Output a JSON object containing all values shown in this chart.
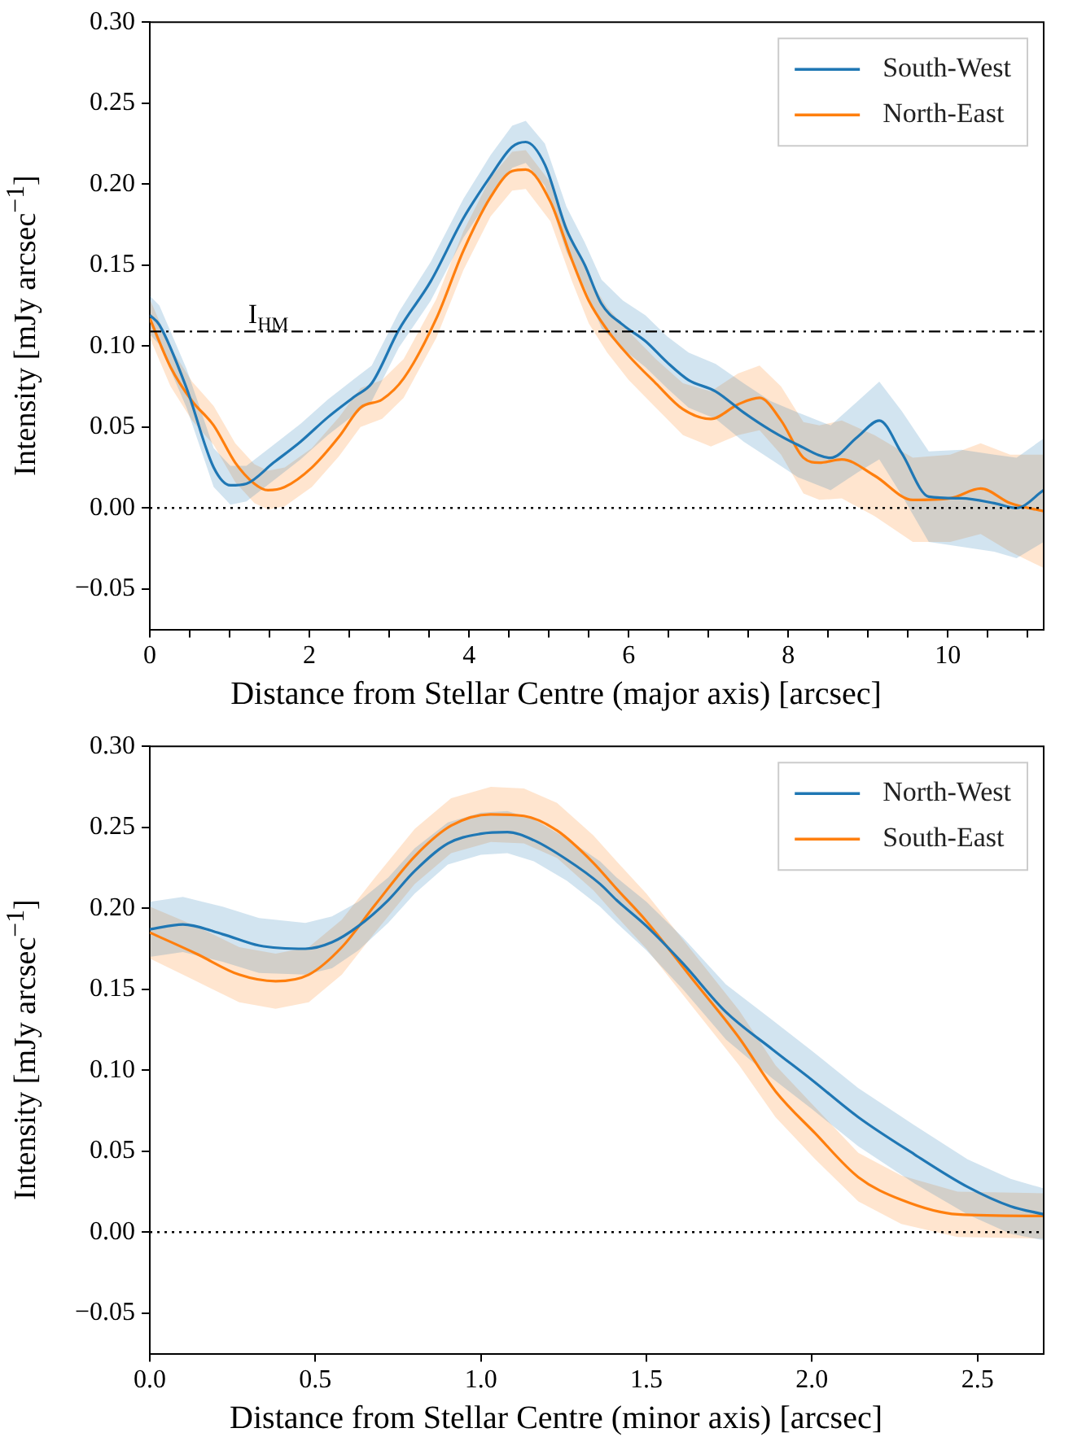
{
  "chart_data": [
    {
      "type": "line",
      "xlabel": "Distance from Stellar Centre (major axis) [arcsec]",
      "ylabel": "Intensity [mJy arcsec$^{−1}$]",
      "xlim": [
        0,
        11.2
      ],
      "ylim": [
        -0.075,
        0.3
      ],
      "xticks": [
        0,
        {
          "value": 0.5,
          "label": null
        },
        {
          "value": 1,
          "label": null
        },
        {
          "value": 1.5,
          "label": null
        },
        2,
        {
          "value": 2.5,
          "label": null
        },
        {
          "value": 3,
          "label": null
        },
        {
          "value": 3.5,
          "label": null
        },
        4,
        {
          "value": 4.5,
          "label": null
        },
        {
          "value": 5,
          "label": null
        },
        {
          "value": 5.5,
          "label": null
        },
        6,
        {
          "value": 6.5,
          "label": null
        },
        {
          "value": 7,
          "label": null
        },
        {
          "value": 7.5,
          "label": null
        },
        8,
        {
          "value": 8.5,
          "label": null
        },
        {
          "value": 9,
          "label": null
        },
        {
          "value": 9.5,
          "label": null
        },
        10,
        {
          "value": 10.5,
          "label": null
        },
        {
          "value": 11,
          "label": null
        }
      ],
      "yticks": [
        {
          "value": -0.05,
          "label": "−0.05"
        },
        {
          "value": 0,
          "label": "0.00"
        },
        {
          "value": 0.05,
          "label": "0.05"
        },
        {
          "value": 0.1,
          "label": "0.10"
        },
        {
          "value": 0.15,
          "label": "0.15"
        },
        {
          "value": 0.2,
          "label": "0.20"
        },
        {
          "value": 0.25,
          "label": "0.25"
        },
        {
          "value": 0.3,
          "label": "0.30"
        }
      ],
      "grid": false,
      "legend": "top right",
      "ref_lines": [
        {
          "axis": "y",
          "value": 0.109,
          "label": "I$_{HM}$",
          "line_style": "dashdot",
          "color": "#000000"
        },
        {
          "axis": "y",
          "value": 0,
          "line_style": "dotted",
          "color": "#000000"
        }
      ],
      "series": [
        {
          "name": "South-West",
          "color": "#1f77b4",
          "x": [
            0,
            0.12,
            0.46,
            0.8,
            1.01,
            1.21,
            1.55,
            1.89,
            2.23,
            2.57,
            2.78,
            3.12,
            3.52,
            3.93,
            4.27,
            4.54,
            4.71,
            4.95,
            5.22,
            5.45,
            5.66,
            5.93,
            6.21,
            6.48,
            6.75,
            7.09,
            7.44,
            7.78,
            8.12,
            8.53,
            8.87,
            9.14,
            9.42,
            9.76,
            10.17,
            10.58,
            10.86,
            11.2
          ],
          "values": [
            0.119,
            0.113,
            0.074,
            0.025,
            0.014,
            0.015,
            0.028,
            0.041,
            0.056,
            0.069,
            0.077,
            0.11,
            0.14,
            0.179,
            0.205,
            0.223,
            0.226,
            0.212,
            0.172,
            0.15,
            0.126,
            0.113,
            0.103,
            0.09,
            0.079,
            0.072,
            0.059,
            0.048,
            0.039,
            0.031,
            0.044,
            0.054,
            0.034,
            0.007,
            0.006,
            0.003,
            0,
            0.011
          ],
          "lower": [
            0.107,
            0.101,
            0.062,
            0.013,
            0.002,
            0.004,
            0.017,
            0.03,
            0.045,
            0.058,
            0.066,
            0.099,
            0.128,
            0.167,
            0.192,
            0.21,
            0.213,
            0.199,
            0.158,
            0.136,
            0.111,
            0.098,
            0.087,
            0.074,
            0.062,
            0.055,
            0.041,
            0.03,
            0.019,
            0.011,
            0.022,
            0.03,
            0.008,
            -0.021,
            -0.024,
            -0.027,
            -0.031,
            -0.021
          ],
          "upper": [
            0.131,
            0.125,
            0.086,
            0.037,
            0.026,
            0.026,
            0.039,
            0.052,
            0.067,
            0.08,
            0.088,
            0.121,
            0.152,
            0.191,
            0.218,
            0.236,
            0.239,
            0.225,
            0.186,
            0.164,
            0.141,
            0.128,
            0.119,
            0.106,
            0.096,
            0.089,
            0.077,
            0.066,
            0.059,
            0.051,
            0.066,
            0.078,
            0.06,
            0.035,
            0.036,
            0.033,
            0.031,
            0.043
          ]
        },
        {
          "name": "North-East",
          "color": "#ff7f0e",
          "x": [
            0,
            0.26,
            0.53,
            0.8,
            1.07,
            1.31,
            1.48,
            1.69,
            2.03,
            2.37,
            2.64,
            2.91,
            3.18,
            3.59,
            3.93,
            4.27,
            4.54,
            4.71,
            5.02,
            5.29,
            5.5,
            5.73,
            6,
            6.34,
            6.68,
            7.03,
            7.37,
            7.64,
            7.91,
            8.19,
            8.39,
            8.67,
            9.08,
            9.56,
            10.03,
            10.41,
            10.78,
            11.2
          ],
          "values": [
            0.117,
            0.087,
            0.066,
            0.051,
            0.028,
            0.015,
            0.011,
            0.013,
            0.025,
            0.044,
            0.062,
            0.067,
            0.08,
            0.117,
            0.159,
            0.192,
            0.208,
            0.209,
            0.189,
            0.153,
            0.128,
            0.11,
            0.094,
            0.077,
            0.061,
            0.055,
            0.064,
            0.068,
            0.054,
            0.031,
            0.028,
            0.03,
            0.02,
            0.005,
            0.006,
            0.012,
            0.003,
            -0.002
          ],
          "lower": [
            0.105,
            0.075,
            0.054,
            0.039,
            0.016,
            0.003,
            -0.001,
            0.001,
            0.013,
            0.032,
            0.05,
            0.055,
            0.068,
            0.105,
            0.147,
            0.18,
            0.196,
            0.197,
            0.177,
            0.14,
            0.114,
            0.096,
            0.079,
            0.062,
            0.045,
            0.038,
            0.045,
            0.048,
            0.033,
            0.009,
            0.005,
            0.006,
            -0.005,
            -0.021,
            -0.021,
            -0.016,
            -0.027,
            -0.037
          ],
          "upper": [
            0.129,
            0.099,
            0.078,
            0.063,
            0.04,
            0.027,
            0.023,
            0.025,
            0.037,
            0.056,
            0.074,
            0.079,
            0.092,
            0.129,
            0.171,
            0.204,
            0.22,
            0.221,
            0.201,
            0.166,
            0.142,
            0.124,
            0.109,
            0.092,
            0.077,
            0.072,
            0.083,
            0.088,
            0.075,
            0.053,
            0.051,
            0.054,
            0.045,
            0.031,
            0.033,
            0.04,
            0.033,
            0.033
          ]
        }
      ]
    },
    {
      "type": "line",
      "xlabel": "Distance from Stellar Centre (minor axis) [arcsec]",
      "ylabel": "Intensity [mJy arcsec$^{−1}$]",
      "xlim": [
        0,
        2.7
      ],
      "ylim": [
        -0.075,
        0.3
      ],
      "xticks": [
        {
          "value": 0,
          "label": "0.0"
        },
        0.5,
        {
          "value": 1,
          "label": "1.0"
        },
        1.5,
        {
          "value": 2,
          "label": "2.0"
        },
        2.5
      ],
      "yticks": [
        {
          "value": -0.05,
          "label": "−0.05"
        },
        {
          "value": 0,
          "label": "0.00"
        },
        {
          "value": 0.05,
          "label": "0.05"
        },
        {
          "value": 0.1,
          "label": "0.10"
        },
        {
          "value": 0.15,
          "label": "0.15"
        },
        {
          "value": 0.2,
          "label": "0.20"
        },
        {
          "value": 0.25,
          "label": "0.25"
        },
        {
          "value": 0.3,
          "label": "0.30"
        }
      ],
      "grid": false,
      "legend": "top right",
      "ref_lines": [
        {
          "axis": "y",
          "value": 0,
          "line_style": "dotted",
          "color": "#000000"
        }
      ],
      "series": [
        {
          "name": "North-West",
          "color": "#1f77b4",
          "x": [
            0,
            0.1,
            0.22,
            0.33,
            0.47,
            0.55,
            0.63,
            0.72,
            0.8,
            0.9,
            1,
            1.08,
            1.16,
            1.26,
            1.36,
            1.41,
            1.5,
            1.61,
            1.74,
            1.88,
            2,
            2.14,
            2.31,
            2.47,
            2.6,
            2.7
          ],
          "values": [
            0.187,
            0.19,
            0.184,
            0.177,
            0.175,
            0.179,
            0.189,
            0.205,
            0.223,
            0.24,
            0.246,
            0.247,
            0.242,
            0.23,
            0.215,
            0.205,
            0.189,
            0.166,
            0.136,
            0.113,
            0.094,
            0.071,
            0.048,
            0.028,
            0.016,
            0.011
          ],
          "lower": [
            0.17,
            0.173,
            0.167,
            0.16,
            0.159,
            0.163,
            0.174,
            0.191,
            0.209,
            0.227,
            0.233,
            0.234,
            0.229,
            0.217,
            0.201,
            0.191,
            0.174,
            0.15,
            0.119,
            0.095,
            0.076,
            0.053,
            0.03,
            0.011,
            -0.001,
            -0.005
          ],
          "upper": [
            0.204,
            0.207,
            0.201,
            0.194,
            0.191,
            0.195,
            0.204,
            0.219,
            0.237,
            0.253,
            0.259,
            0.26,
            0.255,
            0.243,
            0.229,
            0.219,
            0.204,
            0.182,
            0.153,
            0.131,
            0.112,
            0.089,
            0.066,
            0.045,
            0.033,
            0.027
          ]
        },
        {
          "name": "South-East",
          "color": "#ff7f0e",
          "x": [
            0,
            0.14,
            0.27,
            0.38,
            0.48,
            0.58,
            0.68,
            0.8,
            0.91,
            1.03,
            1.13,
            1.23,
            1.34,
            1.41,
            1.5,
            1.64,
            1.78,
            1.89,
            2.01,
            2.14,
            2.27,
            2.44,
            2.7
          ],
          "values": [
            0.185,
            0.172,
            0.159,
            0.155,
            0.159,
            0.176,
            0.202,
            0.232,
            0.251,
            0.258,
            0.257,
            0.248,
            0.228,
            0.212,
            0.192,
            0.156,
            0.12,
            0.087,
            0.061,
            0.034,
            0.02,
            0.011,
            0.01
          ],
          "lower": [
            0.169,
            0.155,
            0.142,
            0.138,
            0.142,
            0.159,
            0.185,
            0.215,
            0.234,
            0.241,
            0.24,
            0.231,
            0.211,
            0.195,
            0.175,
            0.139,
            0.103,
            0.071,
            0.045,
            0.019,
            0.005,
            -0.003,
            -0.004
          ],
          "upper": [
            0.201,
            0.189,
            0.176,
            0.172,
            0.176,
            0.193,
            0.219,
            0.249,
            0.268,
            0.275,
            0.274,
            0.265,
            0.245,
            0.229,
            0.209,
            0.173,
            0.137,
            0.103,
            0.077,
            0.049,
            0.035,
            0.025,
            0.024
          ]
        }
      ]
    }
  ]
}
